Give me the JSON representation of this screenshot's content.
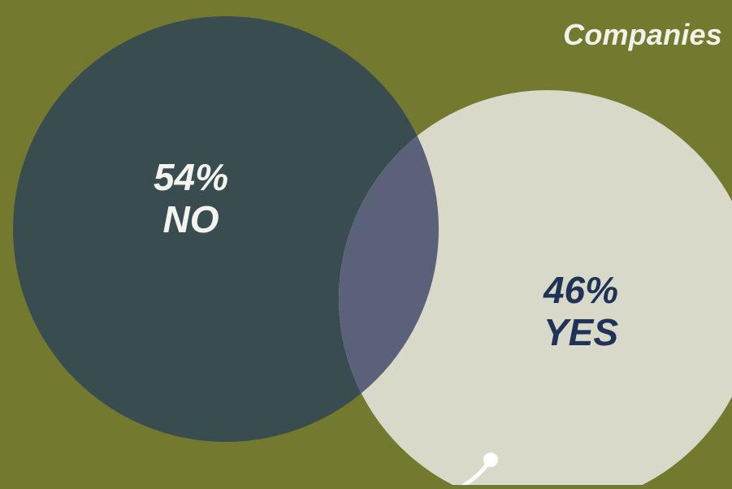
{
  "header": {
    "title": "Companies"
  },
  "venn": {
    "left_set": {
      "percent": "54%",
      "label": "NO"
    },
    "right_set": {
      "percent": "46%",
      "label": "YES"
    }
  },
  "colors": {
    "background": "#737a2f",
    "left_circle": "#394d50",
    "right_circle": "#d8d9c8",
    "overlap": "#5b6178",
    "no_text": "#f3f4ef",
    "yes_text": "#1f3257"
  },
  "chart_data": {
    "type": "venn",
    "sets": [
      {
        "label": "NO",
        "value": 54,
        "display": "54%"
      },
      {
        "label": "YES",
        "value": 46,
        "display": "46%"
      }
    ]
  }
}
